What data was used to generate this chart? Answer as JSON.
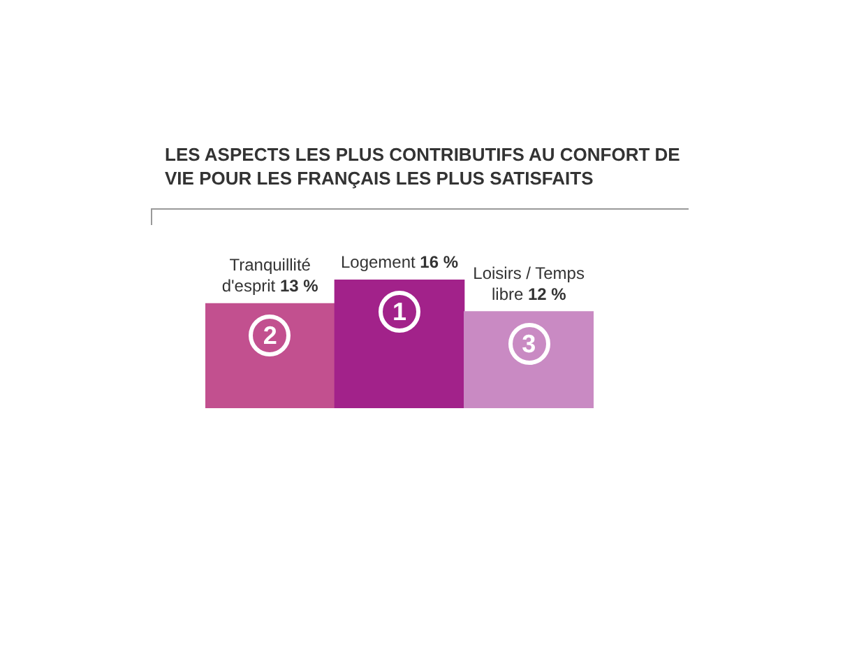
{
  "chart_data": {
    "type": "bar",
    "title": "LES ASPECTS LES PLUS CONTRIBUTIFS AU CONFORT DE VIE POUR LES FRANÇAIS LES PLUS SATISFAITS",
    "categories": [
      "Tranquillité d'esprit",
      "Logement",
      "Loisirs / Temps libre"
    ],
    "values": [
      13,
      16,
      12
    ],
    "value_labels": [
      "13 %",
      "16 %",
      "12 %"
    ],
    "colors": [
      "#c2508f",
      "#a2228a",
      "#c98ac3"
    ],
    "annotations": [
      "2",
      "1",
      "3"
    ]
  }
}
